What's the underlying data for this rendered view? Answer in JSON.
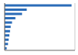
{
  "chart_data": {
    "type": "bar",
    "orientation": "horizontal",
    "categories": [
      null,
      null,
      null,
      null,
      null,
      null,
      null,
      null,
      null,
      null,
      null
    ],
    "values": [
      100,
      33,
      26,
      16,
      11,
      9,
      8,
      7,
      6,
      5,
      3
    ],
    "color": "#2b6cb8",
    "xlim": [
      0,
      105
    ],
    "xticks": [
      0,
      25,
      50,
      75,
      100
    ],
    "grid": true,
    "tick_labels": false
  }
}
